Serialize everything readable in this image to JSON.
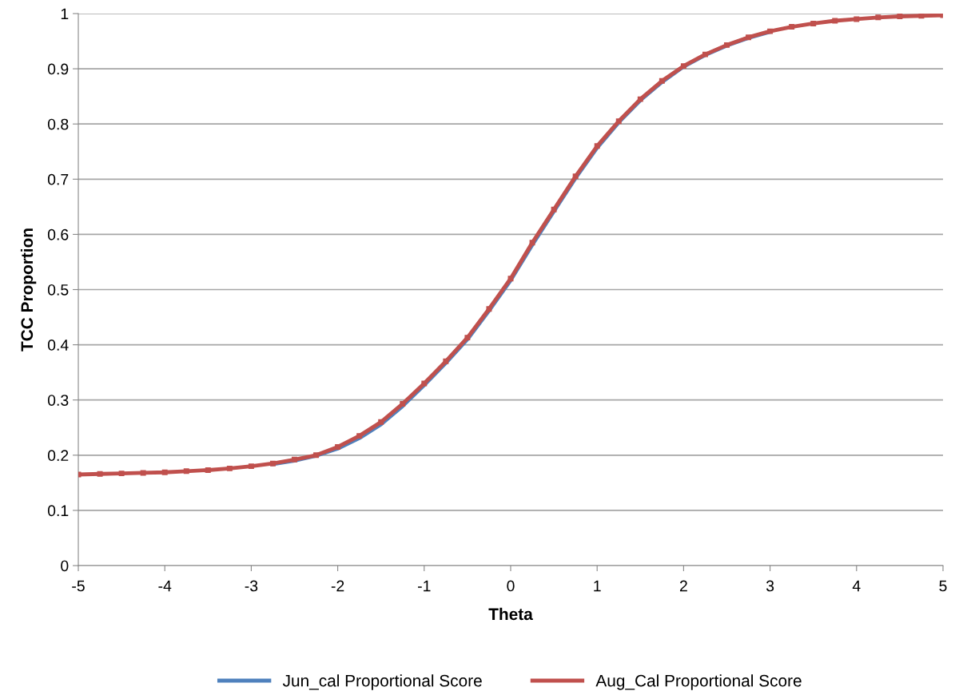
{
  "chart_data": {
    "type": "line",
    "xlabel": "Theta",
    "ylabel": "TCC Proportion",
    "x": [
      -5,
      -4.75,
      -4.5,
      -4.25,
      -4,
      -3.75,
      -3.5,
      -3.25,
      -3,
      -2.75,
      -2.5,
      -2.25,
      -2,
      -1.75,
      -1.5,
      -1.25,
      -1,
      -0.75,
      -0.5,
      -0.25,
      0,
      0.25,
      0.5,
      0.75,
      1,
      1.25,
      1.5,
      1.75,
      2,
      2.25,
      2.5,
      2.75,
      3,
      3.25,
      3.5,
      3.75,
      4,
      4.25,
      4.5,
      4.75,
      5
    ],
    "series": [
      {
        "name": "Jun_cal Proportional Score",
        "color": "#4f81bd",
        "marker": "none",
        "values": [
          null,
          null,
          null,
          null,
          null,
          null,
          null,
          null,
          null,
          0.184,
          0.19,
          0.199,
          0.212,
          0.231,
          0.256,
          0.289,
          0.327,
          0.367,
          0.41,
          0.462,
          0.517,
          0.581,
          0.642,
          0.702,
          0.757,
          0.803,
          0.843,
          0.876,
          0.904,
          0.925,
          0.942,
          0.956,
          0.967,
          null,
          null,
          null,
          null,
          null,
          null,
          null,
          null
        ]
      },
      {
        "name": "Aug_Cal Proportional Score",
        "color": "#c0504d",
        "marker": "square",
        "values": [
          0.165,
          0.166,
          0.167,
          0.168,
          0.169,
          0.171,
          0.173,
          0.176,
          0.18,
          0.185,
          0.192,
          0.2,
          0.215,
          0.235,
          0.26,
          0.293,
          0.33,
          0.37,
          0.413,
          0.465,
          0.52,
          0.585,
          0.645,
          0.705,
          0.76,
          0.805,
          0.845,
          0.878,
          0.905,
          0.926,
          0.943,
          0.957,
          0.968,
          0.976,
          0.982,
          0.987,
          0.99,
          0.993,
          0.995,
          0.996,
          0.997
        ]
      }
    ],
    "xlim": [
      -5,
      5
    ],
    "xticks": [
      -5,
      -4,
      -3,
      -2,
      -1,
      0,
      1,
      2,
      3,
      4,
      5
    ],
    "ylim": [
      0,
      1
    ],
    "yticks": [
      0,
      0.1,
      0.2,
      0.3,
      0.4,
      0.5,
      0.6,
      0.7,
      0.8,
      0.9,
      1
    ],
    "grid": "y",
    "legend": "bottom"
  }
}
